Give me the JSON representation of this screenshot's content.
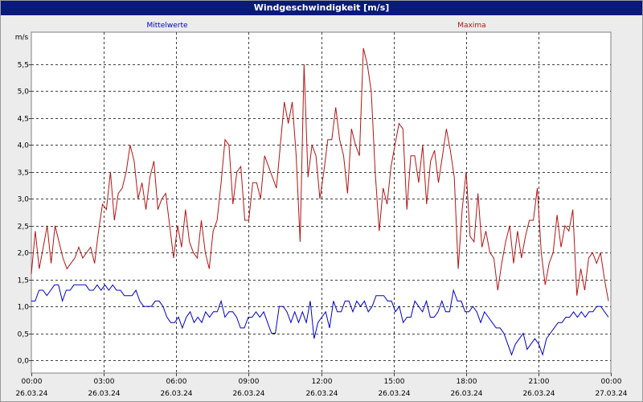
{
  "window": {
    "title": "Windgeschwindigkeit [m/s]"
  },
  "chart_data": {
    "type": "line",
    "title": "Windgeschwindigkeit [m/s]",
    "ylabel": "m/s",
    "xlabel": "",
    "ylim": [
      -0.2,
      6.0
    ],
    "grid": true,
    "legend_placement": "top",
    "y_ticks": [
      "0,0",
      "0,5",
      "1,0",
      "1,5",
      "2,0",
      "2,5",
      "3,0",
      "3,5",
      "4,0",
      "4,5",
      "5,0",
      "5,5"
    ],
    "y_tick_values": [
      0.0,
      0.5,
      1.0,
      1.5,
      2.0,
      2.5,
      3.0,
      3.5,
      4.0,
      4.5,
      5.0,
      5.5
    ],
    "x_ticks": [
      {
        "time": "00:00",
        "date": "26.03.24"
      },
      {
        "time": "03:00",
        "date": "26.03.24"
      },
      {
        "time": "06:00",
        "date": "26.03.24"
      },
      {
        "time": "09:00",
        "date": "26.03.24"
      },
      {
        "time": "12:00",
        "date": "26.03.24"
      },
      {
        "time": "15:00",
        "date": "26.03.24"
      },
      {
        "time": "18:00",
        "date": "26.03.24"
      },
      {
        "time": "21:00",
        "date": "26.03.24"
      },
      {
        "time": "00:00",
        "date": "27.03.24"
      }
    ],
    "series": [
      {
        "name": "Mittelwerte",
        "color": "#0000c8",
        "values": [
          1.1,
          1.1,
          1.3,
          1.3,
          1.2,
          1.3,
          1.4,
          1.4,
          1.1,
          1.3,
          1.3,
          1.4,
          1.4,
          1.4,
          1.4,
          1.3,
          1.3,
          1.4,
          1.3,
          1.4,
          1.3,
          1.4,
          1.3,
          1.3,
          1.2,
          1.2,
          1.2,
          1.3,
          1.1,
          1.0,
          1.0,
          1.0,
          1.1,
          1.1,
          1.0,
          0.8,
          0.7,
          0.7,
          0.8,
          0.6,
          0.8,
          0.9,
          0.7,
          0.8,
          0.7,
          0.9,
          0.8,
          0.9,
          0.9,
          1.1,
          0.8,
          0.9,
          0.9,
          0.8,
          0.6,
          0.6,
          0.8,
          0.8,
          0.9,
          0.8,
          0.9,
          0.7,
          0.5,
          0.5,
          1.0,
          1.0,
          0.9,
          0.7,
          0.9,
          0.7,
          0.9,
          0.7,
          1.1,
          0.4,
          0.7,
          0.8,
          0.9,
          0.6,
          1.1,
          0.9,
          0.9,
          1.1,
          1.1,
          0.9,
          1.1,
          1.0,
          1.1,
          0.9,
          1.0,
          1.2,
          1.2,
          1.2,
          1.1,
          1.1,
          0.9,
          1.0,
          0.7,
          0.8,
          0.8,
          1.1,
          1.0,
          0.9,
          1.1,
          0.8,
          0.8,
          0.9,
          1.1,
          0.9,
          0.9,
          1.3,
          1.1,
          1.1,
          0.9,
          0.9,
          1.0,
          0.9,
          0.7,
          0.9,
          0.8,
          0.7,
          0.6,
          0.6,
          0.5,
          0.3,
          0.1,
          0.3,
          0.4,
          0.5,
          0.2,
          0.3,
          0.4,
          0.3,
          0.1,
          0.4,
          0.5,
          0.6,
          0.7,
          0.7,
          0.8,
          0.8,
          0.9,
          0.8,
          0.9,
          0.8,
          0.9,
          0.9,
          1.0,
          1.0,
          0.9,
          0.8
        ]
      },
      {
        "name": "Maxima",
        "color": "#b41414",
        "values": [
          1.6,
          2.4,
          1.7,
          2.1,
          2.5,
          1.8,
          2.5,
          2.2,
          1.9,
          1.7,
          1.8,
          1.9,
          2.1,
          1.9,
          2.0,
          2.1,
          1.8,
          2.4,
          2.9,
          2.8,
          3.5,
          2.6,
          3.1,
          3.2,
          3.5,
          4.0,
          3.7,
          3.0,
          3.3,
          2.8,
          3.4,
          3.7,
          2.8,
          3.0,
          3.1,
          2.5,
          1.9,
          2.5,
          2.1,
          2.8,
          2.2,
          2.0,
          1.9,
          2.6,
          2.0,
          1.7,
          2.4,
          2.6,
          3.3,
          4.1,
          4.0,
          2.9,
          3.5,
          3.6,
          2.6,
          2.6,
          3.3,
          3.3,
          3.0,
          3.8,
          3.6,
          3.4,
          3.2,
          4.0,
          4.8,
          4.4,
          4.8,
          3.8,
          2.2,
          5.5,
          3.4,
          4.0,
          3.8,
          3.0,
          3.5,
          4.1,
          4.1,
          4.7,
          4.1,
          3.8,
          3.1,
          4.3,
          4.0,
          3.8,
          5.8,
          5.5,
          5.0,
          3.5,
          2.4,
          3.2,
          2.9,
          3.6,
          4.0,
          4.4,
          4.3,
          2.8,
          3.8,
          3.8,
          3.3,
          4.0,
          2.9,
          3.7,
          3.9,
          3.3,
          3.8,
          4.3,
          3.9,
          3.4,
          1.7,
          2.8,
          3.5,
          2.3,
          2.2,
          3.1,
          2.1,
          2.4,
          2.0,
          1.9,
          1.3,
          1.8,
          2.2,
          2.5,
          1.8,
          2.4,
          1.9,
          2.3,
          2.6,
          2.6,
          3.2,
          2.0,
          1.4,
          1.8,
          2.0,
          2.7,
          2.1,
          2.5,
          2.4,
          2.8,
          1.2,
          1.7,
          1.3,
          1.9,
          2.0,
          1.8,
          2.0,
          1.5,
          1.1
        ]
      }
    ]
  }
}
